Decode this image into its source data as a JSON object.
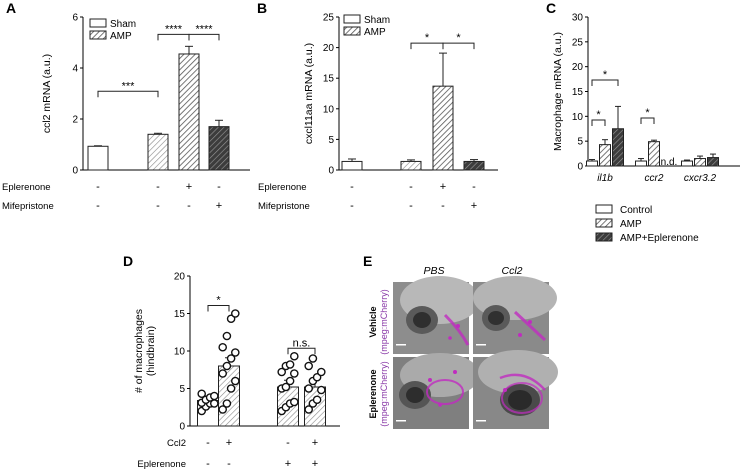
{
  "colors": {
    "magenta": "#c02cc0",
    "purple_text": "#8a3aa8",
    "dark_fill": "#444444",
    "hatch_fill": "#9a9a9a"
  },
  "chart_data": [
    {
      "panel": "A",
      "type": "bar",
      "ylabel": "ccl2 mRNA (a.u.)",
      "ylim": [
        0,
        6
      ],
      "yticks": [
        "0",
        "2",
        "4",
        "6"
      ],
      "legend": [
        {
          "name": "Sham",
          "style": "open"
        },
        {
          "name": "AMP",
          "style": "hatched"
        }
      ],
      "bars": [
        {
          "value": 0.93,
          "err": 0.02,
          "style": "open"
        },
        {
          "value": 1.4,
          "err": 0.04,
          "style": "light"
        },
        {
          "value": 4.55,
          "err": 0.3,
          "style": "hatched"
        },
        {
          "value": 1.7,
          "err": 0.25,
          "style": "dark"
        }
      ],
      "rows": [
        {
          "label": "Eplerenone",
          "signs": [
            "-",
            "-",
            "+",
            "-"
          ]
        },
        {
          "label": "Mifepristone",
          "signs": [
            "-",
            "-",
            "-",
            "+"
          ]
        }
      ],
      "significance": [
        {
          "from": 0,
          "to": 1,
          "label": "***"
        },
        {
          "from": 1,
          "to": 2,
          "label": "****"
        },
        {
          "from": 2,
          "to": 3,
          "label": "****"
        }
      ]
    },
    {
      "panel": "B",
      "type": "bar",
      "ylabel": "cxcl11aa mRNA (a.u.)",
      "ylim": [
        0,
        25
      ],
      "yticks": [
        "0",
        "5",
        "10",
        "15",
        "20",
        "25"
      ],
      "legend": [
        {
          "name": "Sham",
          "style": "open"
        },
        {
          "name": "AMP",
          "style": "hatched"
        }
      ],
      "bars": [
        {
          "value": 1.4,
          "err": 0.4,
          "style": "open"
        },
        {
          "value": 1.4,
          "err": 0.25,
          "style": "light"
        },
        {
          "value": 13.7,
          "err": 5.4,
          "style": "hatched"
        },
        {
          "value": 1.4,
          "err": 0.3,
          "style": "dark"
        }
      ],
      "rows": [
        {
          "label": "Eplerenone",
          "signs": [
            "-",
            "-",
            "+",
            "-"
          ]
        },
        {
          "label": "Mifepristone",
          "signs": [
            "-",
            "-",
            "-",
            "+"
          ]
        }
      ],
      "significance": [
        {
          "from": 1,
          "to": 2,
          "label": "*"
        },
        {
          "from": 2,
          "to": 3,
          "label": "*"
        }
      ]
    },
    {
      "panel": "C",
      "type": "bar",
      "ylabel": "Macrophage mRNA (a.u.)",
      "ylim": [
        0,
        30
      ],
      "yticks": [
        "0",
        "5",
        "10",
        "15",
        "20",
        "25",
        "30"
      ],
      "categories": [
        "il1b",
        "ccr2",
        "cxcr3.2"
      ],
      "series": [
        {
          "name": "Control",
          "style": "open",
          "values": [
            1.0,
            1.0,
            1.0
          ],
          "err": [
            0.3,
            0.5,
            0.2
          ]
        },
        {
          "name": "AMP",
          "style": "hatched",
          "values": [
            4.3,
            4.9,
            1.5
          ],
          "err": [
            1.0,
            0.3,
            0.5
          ]
        },
        {
          "name": "AMP+Eplerenone",
          "style": "darkhatch",
          "values": [
            7.5,
            null,
            1.7
          ],
          "err": [
            4.5,
            null,
            0.7
          ]
        }
      ],
      "nd_label": "n.d.",
      "significance": [
        {
          "group": 0,
          "from": 0,
          "to": 1,
          "label": "*"
        },
        {
          "group": 0,
          "from": 0,
          "to": 2,
          "label": "*"
        },
        {
          "group": 1,
          "from": 0,
          "to": 1,
          "label": "*"
        }
      ]
    },
    {
      "panel": "D",
      "type": "bar",
      "ylabel": "# of macrophages\n(hindbrain)",
      "ylim": [
        0,
        20
      ],
      "yticks": [
        "0",
        "5",
        "10",
        "15",
        "20"
      ],
      "bars": [
        {
          "value": 3.4,
          "err": 0.4,
          "style": "open",
          "points": [
            2.0,
            2.6,
            3.0,
            3.0,
            3.1,
            3.5,
            3.8,
            4.0,
            4.3
          ]
        },
        {
          "value": 8.0,
          "err": 1.1,
          "style": "light",
          "points": [
            2.2,
            3.0,
            5.0,
            6.0,
            7.0,
            8.0,
            9.0,
            9.8,
            10.5,
            12.0,
            14.3,
            15.0
          ]
        },
        {
          "value": 5.2,
          "err": 0.9,
          "style": "light",
          "points": [
            2.0,
            2.5,
            3.0,
            3.2,
            5.0,
            5.2,
            6.0,
            7.0,
            7.2,
            8.0,
            8.2,
            9.3
          ]
        },
        {
          "value": 5.2,
          "err": 0.9,
          "style": "light",
          "points": [
            2.2,
            3.0,
            3.5,
            4.8,
            5.0,
            6.0,
            6.5,
            7.2,
            8.0,
            9.0
          ]
        }
      ],
      "rows": [
        {
          "label": "Ccl2",
          "signs": [
            "-",
            "+",
            "-",
            "+"
          ]
        },
        {
          "label": "Eplerenone",
          "signs": [
            "-",
            "-",
            "+",
            "+"
          ]
        }
      ],
      "significance": [
        {
          "from": 0,
          "to": 1,
          "label": "*"
        },
        {
          "from": 2,
          "to": 3,
          "label": "n.s."
        }
      ]
    }
  ],
  "panel_e": {
    "panel": "E",
    "columns": [
      "PBS",
      "Ccl2"
    ],
    "rows": [
      {
        "title": "Vehicle",
        "sub": "(mpeg:mCherry)"
      },
      {
        "title": "Eplerenone",
        "sub": "(mpeg:mCherry)"
      }
    ],
    "scale_bar": "100 μm"
  },
  "panel_labels": [
    "A",
    "B",
    "C",
    "D",
    "E"
  ]
}
